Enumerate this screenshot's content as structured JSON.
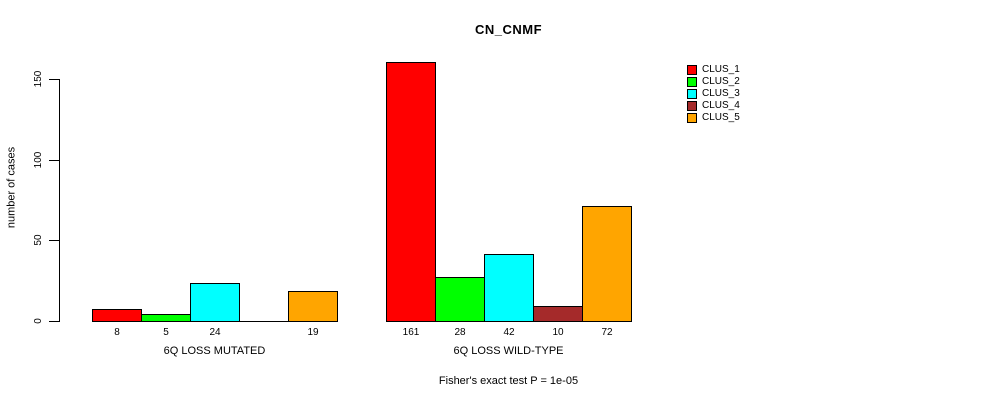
{
  "title": "CN_CNMF",
  "y_axis": {
    "label": "number of cases",
    "ticks": [
      0,
      50,
      100,
      150
    ]
  },
  "legend": {
    "items": [
      {
        "label": "CLUS_1",
        "color": "#FF0000"
      },
      {
        "label": "CLUS_2",
        "color": "#00FF00"
      },
      {
        "label": "CLUS_3",
        "color": "#00FFFF"
      },
      {
        "label": "CLUS_4",
        "color": "#A52A2A"
      },
      {
        "label": "CLUS_5",
        "color": "#FFA500"
      }
    ]
  },
  "chart_data": {
    "type": "bar",
    "title": "CN_CNMF",
    "ylabel": "number of cases",
    "ylim": [
      0,
      161
    ],
    "yticks": [
      0,
      50,
      100,
      150
    ],
    "grid": false,
    "legend_position": "top-right",
    "series": [
      "CLUS_1",
      "CLUS_2",
      "CLUS_3",
      "CLUS_4",
      "CLUS_5"
    ],
    "colors": [
      "#FF0000",
      "#00FF00",
      "#00FFFF",
      "#A52A2A",
      "#FFA500"
    ],
    "groups": [
      {
        "label": "6Q LOSS MUTATED",
        "values": [
          8,
          5,
          24,
          0,
          19
        ],
        "bar_labels": [
          "8",
          "5",
          "24",
          "",
          "19"
        ]
      },
      {
        "label": "6Q LOSS WILD-TYPE",
        "values": [
          161,
          28,
          42,
          10,
          72
        ],
        "bar_labels": [
          "161",
          "28",
          "42",
          "10",
          "72"
        ]
      }
    ],
    "annotation": "Fisher's exact test P = 1e-05"
  }
}
